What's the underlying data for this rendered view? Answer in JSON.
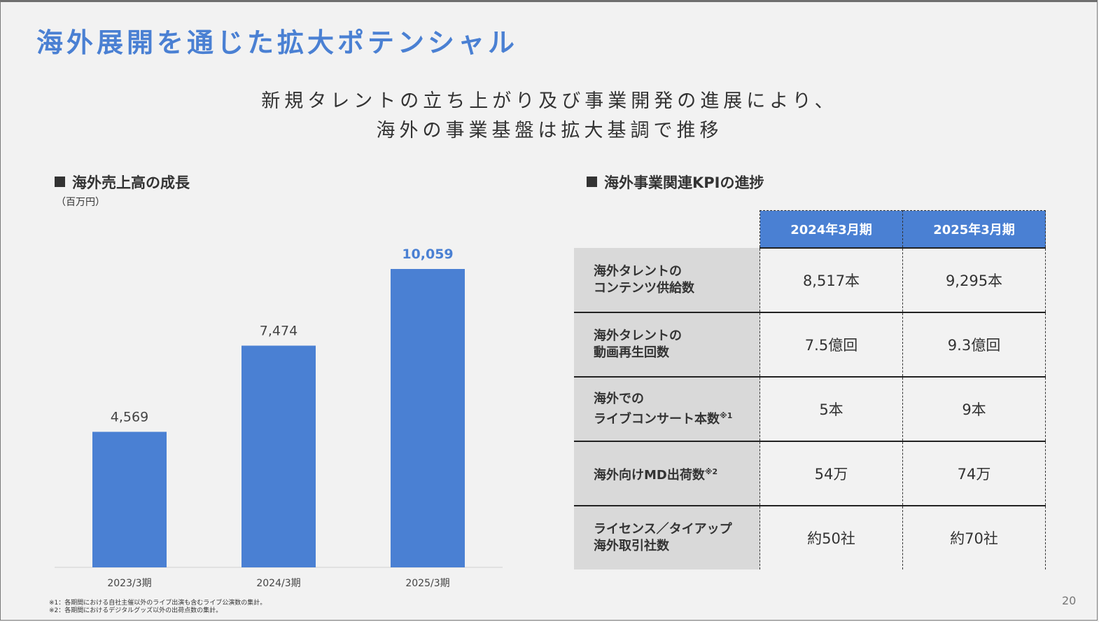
{
  "title": "海外展開を通じた拡大ポテンシャル",
  "subtitle": [
    "新規タレントの立ち上がり及び事業開発の進展により、",
    "海外の事業基盤は拡大基調で推移"
  ],
  "left_section": {
    "heading": "海外売上高の成長",
    "unit": "（百万円）"
  },
  "right_section": {
    "heading": "海外事業関連KPIの進捗"
  },
  "chart_data": {
    "type": "bar",
    "title": "海外売上高の成長",
    "ylabel": "（百万円）",
    "categories": [
      "2023/3期",
      "2024/3期",
      "2025/3期"
    ],
    "values": [
      4569,
      7474,
      10059
    ],
    "value_labels": [
      "4,569",
      "7,474",
      "10,059"
    ],
    "ylim": [
      0,
      10059
    ],
    "bar_color": "#4a80d3",
    "highlight_label_color": "#4a80d3",
    "grid": false
  },
  "kpi_table": {
    "columns": [
      "2024年3月期",
      "2025年3月期"
    ],
    "rows": [
      {
        "label_lines": [
          "海外タレントの",
          "コンテンツ供給数"
        ],
        "note": "",
        "values": [
          "8,517本",
          "9,295本"
        ]
      },
      {
        "label_lines": [
          "海外タレントの",
          "動画再生回数"
        ],
        "note": "",
        "values": [
          "7.5億回",
          "9.3億回"
        ]
      },
      {
        "label_lines": [
          "海外での",
          "ライブコンサート本数"
        ],
        "note": "※1",
        "values": [
          "5本",
          "9本"
        ]
      },
      {
        "label_lines": [
          "海外向けMD出荷数"
        ],
        "note": "※2",
        "values": [
          "54万",
          "74万"
        ]
      },
      {
        "label_lines": [
          "ライセンス／タイアップ",
          "海外取引社数"
        ],
        "note": "",
        "values": [
          "約50社",
          "約70社"
        ]
      }
    ]
  },
  "footnotes": [
    "※1：各期間における自社主催以外のライブ出演も含むライブ公演数の集計。",
    "※2：各期間におけるデジタルグッズ以外の出荷点数の集計。"
  ],
  "page_number": "20",
  "colors": {
    "accent": "#4a80d3",
    "label_bg": "#d9d9d9",
    "background": "#f2f2f2"
  }
}
